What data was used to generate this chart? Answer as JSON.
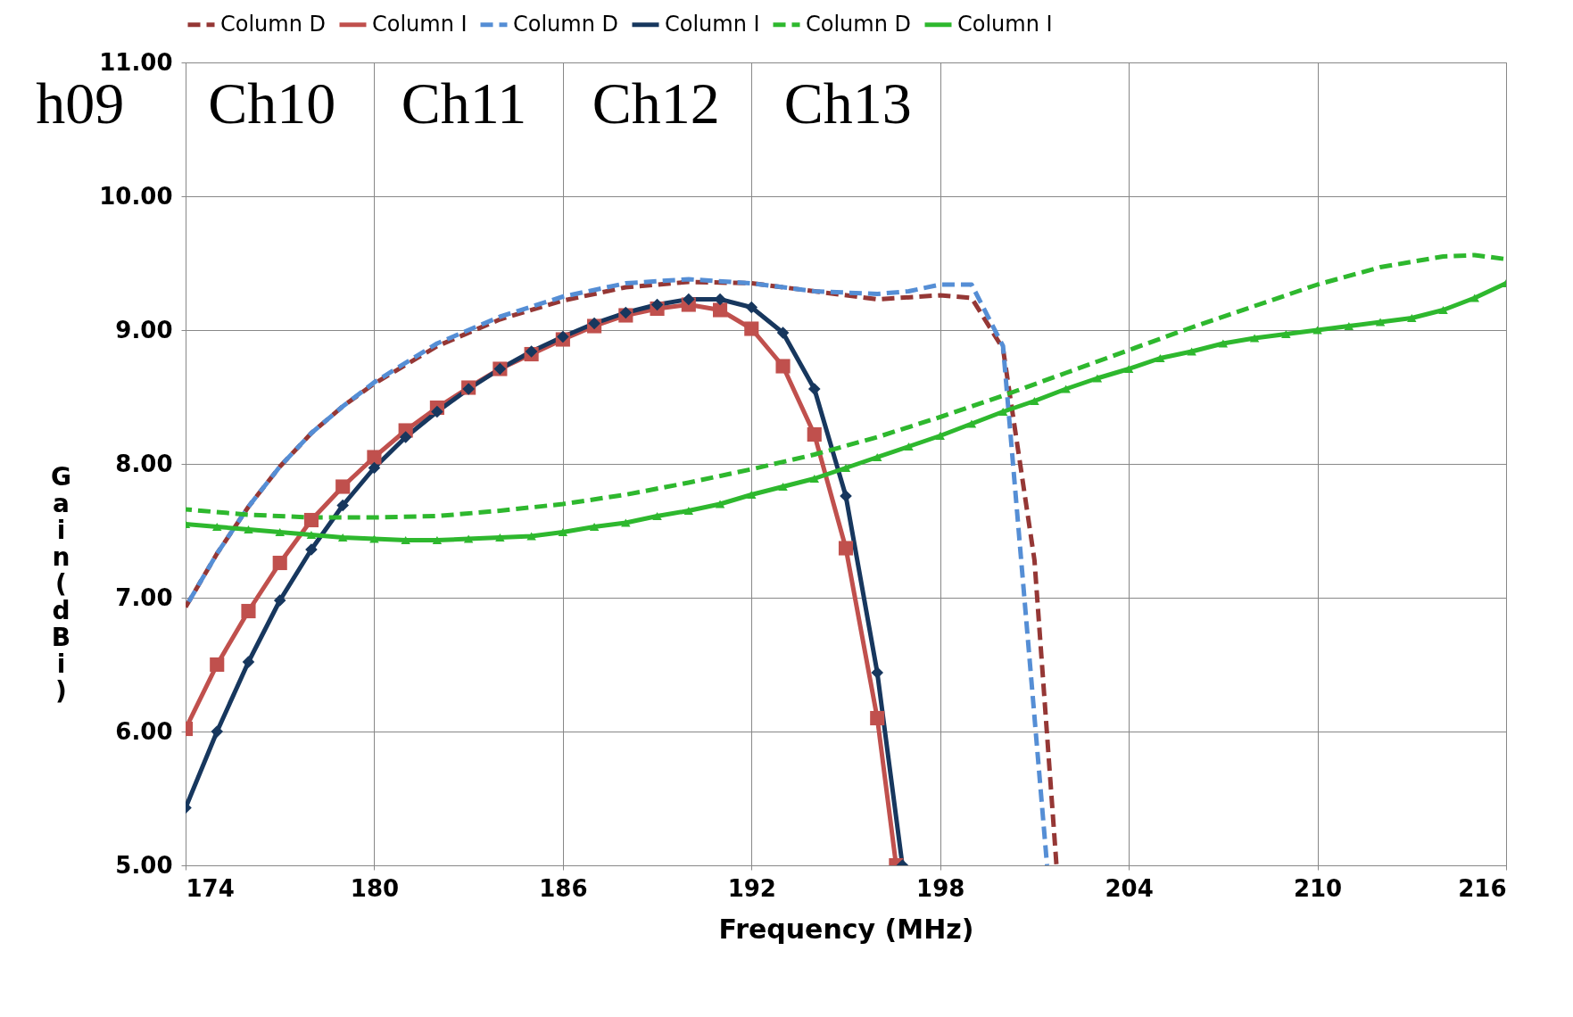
{
  "chart_data": {
    "type": "line",
    "xlabel": "Frequency (MHz)",
    "ylabel": "Gain (dBi)",
    "xlim": [
      174,
      216
    ],
    "xticks": [
      174,
      180,
      186,
      192,
      198,
      204,
      210,
      216
    ],
    "ylim": [
      5,
      11
    ],
    "yticks": [
      {
        "value": 5,
        "label": "5.00"
      },
      {
        "value": 6,
        "label": "6.00"
      },
      {
        "value": 7,
        "label": "7.00"
      },
      {
        "value": 8,
        "label": "8.00"
      },
      {
        "value": 9,
        "label": "9.00"
      },
      {
        "value": 10,
        "label": "10.00"
      },
      {
        "value": 11,
        "label": "11.00"
      }
    ],
    "grid": true,
    "legend": "top",
    "annotations": [
      "h09",
      "Ch10",
      "Ch11",
      "Ch12",
      "Ch13"
    ],
    "series": [
      {
        "name": "Column D",
        "color": "#953735",
        "line_style": "dashed",
        "marker": "none",
        "x": [
          174,
          175,
          176,
          177,
          178,
          179,
          180,
          182,
          184,
          186,
          188,
          190,
          192,
          194,
          196,
          198,
          199,
          200,
          201,
          201.7
        ],
        "values": [
          6.93,
          7.33,
          7.68,
          7.98,
          8.23,
          8.43,
          8.6,
          8.88,
          9.08,
          9.22,
          9.32,
          9.36,
          9.35,
          9.29,
          9.23,
          9.26,
          9.24,
          8.86,
          7.28,
          5.0
        ]
      },
      {
        "name": "Column I",
        "color": "#c0504d",
        "line_style": "solid",
        "marker": "square",
        "x": [
          174,
          175,
          176,
          177,
          178,
          179,
          180,
          181,
          182,
          183,
          184,
          185,
          186,
          187,
          188,
          189,
          190,
          191,
          192,
          193,
          194,
          195,
          196,
          196.6
        ],
        "values": [
          6.02,
          6.5,
          6.9,
          7.26,
          7.58,
          7.83,
          8.05,
          8.25,
          8.42,
          8.57,
          8.71,
          8.82,
          8.93,
          9.03,
          9.11,
          9.16,
          9.19,
          9.15,
          9.01,
          8.73,
          8.22,
          7.37,
          6.1,
          5.0
        ]
      },
      {
        "name": "Column D",
        "color": "#558ed5",
        "line_style": "dashed",
        "marker": "none",
        "x": [
          174,
          175,
          176,
          177,
          178,
          179,
          180,
          182,
          184,
          186,
          188,
          190,
          192,
          194,
          196,
          197,
          198,
          199,
          200,
          201.4
        ],
        "values": [
          6.93,
          7.33,
          7.68,
          7.98,
          8.23,
          8.43,
          8.61,
          8.9,
          9.1,
          9.25,
          9.35,
          9.38,
          9.35,
          9.29,
          9.27,
          9.29,
          9.34,
          9.34,
          8.88,
          5.0
        ]
      },
      {
        "name": "Column I",
        "color": "#17375e",
        "line_style": "solid",
        "marker": "diamond",
        "x": [
          174,
          175,
          176,
          177,
          178,
          179,
          180,
          181,
          182,
          183,
          184,
          185,
          186,
          187,
          188,
          189,
          190,
          191,
          192,
          193,
          194,
          195,
          196,
          196.8
        ],
        "values": [
          5.43,
          6.0,
          6.52,
          6.98,
          7.36,
          7.69,
          7.97,
          8.2,
          8.39,
          8.56,
          8.71,
          8.84,
          8.95,
          9.05,
          9.13,
          9.19,
          9.23,
          9.23,
          9.17,
          8.98,
          8.56,
          7.76,
          6.44,
          5.0
        ]
      },
      {
        "name": "Column D",
        "color": "#2eb82e",
        "line_style": "dashed",
        "marker": "none",
        "x": [
          174,
          176,
          178,
          180,
          182,
          184,
          186,
          188,
          190,
          192,
          194,
          196,
          198,
          200,
          202,
          204,
          206,
          208,
          210,
          212,
          214,
          215,
          216
        ],
        "values": [
          7.66,
          7.62,
          7.6,
          7.6,
          7.61,
          7.65,
          7.7,
          7.77,
          7.86,
          7.96,
          8.07,
          8.2,
          8.35,
          8.51,
          8.68,
          8.85,
          9.02,
          9.18,
          9.34,
          9.47,
          9.55,
          9.56,
          9.53
        ]
      },
      {
        "name": "Column I",
        "color": "#2eb82e",
        "line_style": "solid",
        "marker": "triangle",
        "x": [
          174,
          175,
          176,
          177,
          178,
          179,
          180,
          181,
          182,
          183,
          184,
          185,
          186,
          187,
          188,
          189,
          190,
          191,
          192,
          193,
          194,
          195,
          196,
          197,
          198,
          199,
          200,
          201,
          202,
          203,
          204,
          205,
          206,
          207,
          208,
          209,
          210,
          211,
          212,
          213,
          214,
          215,
          216
        ],
        "values": [
          7.55,
          7.53,
          7.51,
          7.49,
          7.47,
          7.45,
          7.44,
          7.43,
          7.43,
          7.44,
          7.45,
          7.46,
          7.49,
          7.53,
          7.56,
          7.61,
          7.65,
          7.7,
          7.77,
          7.83,
          7.89,
          7.97,
          8.05,
          8.13,
          8.21,
          8.3,
          8.39,
          8.47,
          8.56,
          8.64,
          8.71,
          8.79,
          8.84,
          8.9,
          8.94,
          8.97,
          9.0,
          9.03,
          9.06,
          9.09,
          9.15,
          9.24,
          9.35
        ]
      }
    ]
  }
}
